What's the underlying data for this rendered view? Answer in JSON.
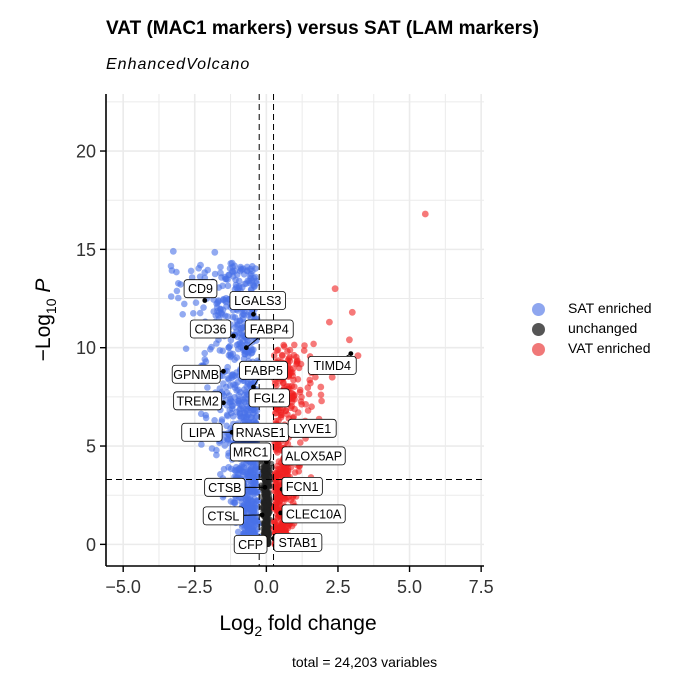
{
  "chart_data": {
    "type": "scatter",
    "title": "VAT (MAC1 markers) versus SAT (LAM markers)",
    "subtitle": "EnhancedVolcano",
    "caption": "total = 24,203 variables",
    "xlabel": "Log2 fold change",
    "ylabel": "−Log10 P",
    "xlim": [
      -5.6,
      7.6
    ],
    "ylim": [
      -1.1,
      22.9
    ],
    "xticks": [
      -5.0,
      -2.5,
      0.0,
      2.5,
      5.0,
      7.5
    ],
    "xtick_labels": [
      "−5.0",
      "−2.5",
      "0.0",
      "2.5",
      "5.0",
      "7.5"
    ],
    "yticks": [
      0,
      5,
      10,
      15,
      20
    ],
    "ytick_labels": [
      "0",
      "5",
      "10",
      "15",
      "20"
    ],
    "fc_cutoff": [
      -0.25,
      0.25
    ],
    "p_cutoff_log10": 3.3,
    "grid": true,
    "legend_position": "right",
    "series": [
      {
        "name": "SAT enriched",
        "color": "#4a72e8"
      },
      {
        "name": "unchanged",
        "color": "#222222"
      },
      {
        "name": "VAT enriched",
        "color": "#f02020"
      }
    ],
    "highlight_points": [
      {
        "x": -3.25,
        "y": 14.9,
        "series": "SAT enriched"
      },
      {
        "x": -2.3,
        "y": 14.2,
        "series": "SAT enriched"
      },
      {
        "x": -1.8,
        "y": 14.85,
        "series": "SAT enriched"
      },
      {
        "x": -1.6,
        "y": 13.8,
        "series": "SAT enriched"
      },
      {
        "x": -1.1,
        "y": 13.9,
        "series": "SAT enriched"
      },
      {
        "x": -1.9,
        "y": 13.2,
        "series": "SAT enriched"
      },
      {
        "x": -2.5,
        "y": 12.9,
        "series": "SAT enriched"
      },
      {
        "x": -1.4,
        "y": 13.5,
        "series": "SAT enriched"
      },
      {
        "x": -0.9,
        "y": 14.1,
        "series": "SAT enriched"
      },
      {
        "x": 5.55,
        "y": 16.8,
        "series": "VAT enriched"
      },
      {
        "x": 2.4,
        "y": 13.0,
        "series": "VAT enriched"
      },
      {
        "x": 3.0,
        "y": 11.8,
        "series": "VAT enriched"
      },
      {
        "x": 2.2,
        "y": 11.3,
        "series": "VAT enriched"
      },
      {
        "x": 2.9,
        "y": 10.4,
        "series": "VAT enriched"
      },
      {
        "x": 3.2,
        "y": 9.6,
        "series": "VAT enriched"
      },
      {
        "x": 2.6,
        "y": 9.0,
        "series": "VAT enriched"
      },
      {
        "x": 2.3,
        "y": 8.5,
        "series": "VAT enriched"
      },
      {
        "x": 1.9,
        "y": 8.0,
        "series": "VAT enriched"
      },
      {
        "x": 1.6,
        "y": 9.3,
        "series": "VAT enriched"
      }
    ],
    "annotations": [
      {
        "label": "CD9",
        "x": -2.15,
        "y": 12.4,
        "lx": -2.3,
        "ly": 13.0
      },
      {
        "label": "LGALS3",
        "x": -0.45,
        "y": 11.7,
        "lx": -0.3,
        "ly": 12.4
      },
      {
        "label": "CD36",
        "x": -1.15,
        "y": 10.6,
        "lx": -1.95,
        "ly": 10.95
      },
      {
        "label": "FABP4",
        "x": -0.7,
        "y": 10.0,
        "lx": 0.1,
        "ly": 10.95
      },
      {
        "label": "GPNMB",
        "x": -1.5,
        "y": 8.8,
        "lx": -2.45,
        "ly": 8.65
      },
      {
        "label": "FABP5",
        "x": -0.45,
        "y": 8.0,
        "lx": -0.1,
        "ly": 8.85
      },
      {
        "label": "TIMD4",
        "x": 2.95,
        "y": 9.7,
        "lx": 2.3,
        "ly": 9.1
      },
      {
        "label": "TREM2",
        "x": -1.5,
        "y": 7.2,
        "lx": -2.4,
        "ly": 7.3
      },
      {
        "label": "FGL2",
        "x": 0.25,
        "y": 7.7,
        "lx": 0.1,
        "ly": 7.45
      },
      {
        "label": "LIPA",
        "x": -1.2,
        "y": 5.7,
        "lx": -2.25,
        "ly": 5.7
      },
      {
        "label": "RNASE1",
        "x": -0.05,
        "y": 5.8,
        "lx": -0.2,
        "ly": 5.7
      },
      {
        "label": "LYVE1",
        "x": 0.95,
        "y": 5.7,
        "lx": 1.6,
        "ly": 5.9
      },
      {
        "label": "MRC1",
        "x": 0.0,
        "y": 4.2,
        "lx": -0.55,
        "ly": 4.7
      },
      {
        "label": "ALOX5AP",
        "x": 0.7,
        "y": 4.4,
        "lx": 1.65,
        "ly": 4.5
      },
      {
        "label": "CTSB",
        "x": -0.05,
        "y": 2.9,
        "lx": -1.45,
        "ly": 2.9
      },
      {
        "label": "FCN1",
        "x": 0.55,
        "y": 2.8,
        "lx": 1.25,
        "ly": 2.95
      },
      {
        "label": "CTSL",
        "x": -0.15,
        "y": 1.5,
        "lx": -1.5,
        "ly": 1.45
      },
      {
        "label": "CLEC10A",
        "x": 0.5,
        "y": 1.6,
        "lx": 1.65,
        "ly": 1.55
      },
      {
        "label": "CFP",
        "x": -0.1,
        "y": 0.1,
        "lx": -0.55,
        "ly": 0.0
      },
      {
        "label": "STAB1",
        "x": 0.25,
        "y": 0.3,
        "lx": 1.1,
        "ly": 0.1
      }
    ]
  }
}
